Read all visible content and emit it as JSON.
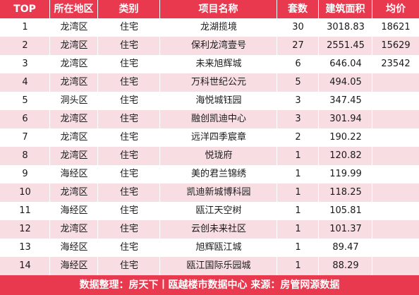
{
  "header": [
    "TOP",
    "所在地区",
    "类别",
    "项目名称",
    "套数",
    "建筑面积",
    "均价"
  ],
  "rows": [
    {
      "top": "1",
      "area": "龙湾区",
      "type": "住宅",
      "name": "龙湖揽境",
      "count": "30",
      "building_area": "3018.83",
      "avg_price": "18621"
    },
    {
      "top": "2",
      "area": "龙湾区",
      "type": "住宅",
      "name": "保利龙湾壹号",
      "count": "27",
      "building_area": "2551.45",
      "avg_price": "15629"
    },
    {
      "top": "3",
      "area": "龙湾区",
      "type": "住宅",
      "name": "未来旭辉城",
      "count": "6",
      "building_area": "646.04",
      "avg_price": "23542"
    },
    {
      "top": "4",
      "area": "龙湾区",
      "type": "住宅",
      "name": "万科世纪公元",
      "count": "5",
      "building_area": "494.05",
      "avg_price": ""
    },
    {
      "top": "5",
      "area": "洞头区",
      "type": "住宅",
      "name": "海悦城钰园",
      "count": "3",
      "building_area": "347.45",
      "avg_price": ""
    },
    {
      "top": "6",
      "area": "龙湾区",
      "type": "住宅",
      "name": "融创凯迪中心",
      "count": "3",
      "building_area": "301.94",
      "avg_price": ""
    },
    {
      "top": "7",
      "area": "龙湾区",
      "type": "住宅",
      "name": "远洋四季宸章",
      "count": "2",
      "building_area": "190.22",
      "avg_price": ""
    },
    {
      "top": "8",
      "area": "龙湾区",
      "type": "住宅",
      "name": "悦珑府",
      "count": "1",
      "building_area": "120.82",
      "avg_price": ""
    },
    {
      "top": "9",
      "area": "海经区",
      "type": "住宅",
      "name": "美的君兰锦绣",
      "count": "1",
      "building_area": "119.99",
      "avg_price": ""
    },
    {
      "top": "10",
      "area": "龙湾区",
      "type": "住宅",
      "name": "凯迪新城博科园",
      "count": "1",
      "building_area": "118.25",
      "avg_price": ""
    },
    {
      "top": "11",
      "area": "海经区",
      "type": "住宅",
      "name": "瓯江天空树",
      "count": "1",
      "building_area": "105.81",
      "avg_price": ""
    },
    {
      "top": "12",
      "area": "龙湾区",
      "type": "住宅",
      "name": "云创未来社区",
      "count": "1",
      "building_area": "101.37",
      "avg_price": ""
    },
    {
      "top": "13",
      "area": "海经区",
      "type": "住宅",
      "name": "旭辉瓯江城",
      "count": "1",
      "building_area": "89.47",
      "avg_price": ""
    },
    {
      "top": "14",
      "area": "海经区",
      "type": "住宅",
      "name": "瓯江国际乐园城",
      "count": "1",
      "building_area": "88.29",
      "avg_price": ""
    }
  ],
  "footer": "数据整理：房天下丨瓯越楼市数据中心  来源：房管网源数据"
}
